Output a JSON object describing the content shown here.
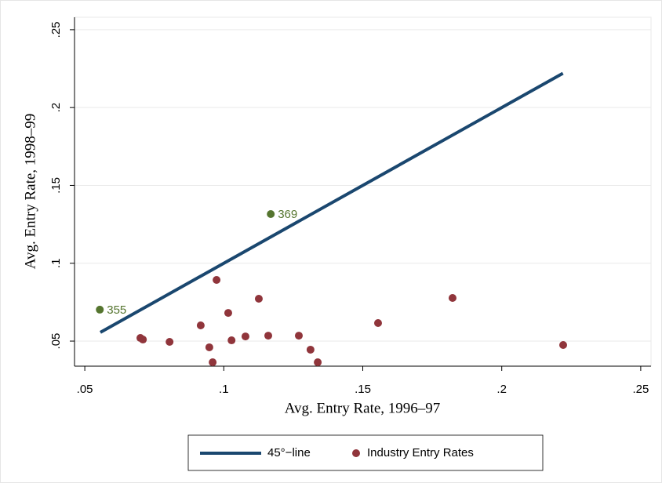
{
  "chart_data": {
    "type": "scatter",
    "xlabel": "Avg. Entry Rate, 1996–97",
    "ylabel": "Avg. Entry Rate, 1998–99",
    "xlim": [
      0.0463,
      0.2537
    ],
    "ylim": [
      0.0339,
      0.258
    ],
    "xticks": [
      {
        "value": 0.05,
        "label": ".05"
      },
      {
        "value": 0.1,
        "label": ".1"
      },
      {
        "value": 0.15,
        "label": ".15"
      },
      {
        "value": 0.2,
        "label": ".2"
      },
      {
        "value": 0.25,
        "label": ".25"
      }
    ],
    "yticks": [
      {
        "value": 0.05,
        "label": ".05"
      },
      {
        "value": 0.1,
        "label": ".1"
      },
      {
        "value": 0.15,
        "label": ".15"
      },
      {
        "value": 0.2,
        "label": ".2"
      },
      {
        "value": 0.25,
        "label": ".25"
      }
    ],
    "grid": true,
    "series": [
      {
        "name": "45°−line",
        "kind": "line",
        "color": "#1a476f",
        "x": [
          0.0556,
          0.222
        ],
        "values": [
          0.0556,
          0.222
        ]
      },
      {
        "name": "Industry Entry Rates",
        "kind": "points",
        "color": "#90353b",
        "x": [
          0.07,
          0.0709,
          0.0805,
          0.0917,
          0.0948,
          0.096,
          0.0974,
          0.1016,
          0.1028,
          0.1078,
          0.1126,
          0.116,
          0.127,
          0.1312,
          0.1338,
          0.1555,
          0.1823,
          0.2221
        ],
        "values": [
          0.052,
          0.051,
          0.0495,
          0.0601,
          0.046,
          0.0364,
          0.0893,
          0.0681,
          0.0505,
          0.053,
          0.0772,
          0.0535,
          0.0535,
          0.0445,
          0.0364,
          0.0616,
          0.0777,
          0.0475
        ]
      }
    ],
    "highlighted": {
      "color": "#55752f",
      "x": [
        0.0554,
        0.1169
      ],
      "values": [
        0.0702,
        0.1316
      ],
      "labels": [
        "355",
        "369"
      ]
    }
  }
}
